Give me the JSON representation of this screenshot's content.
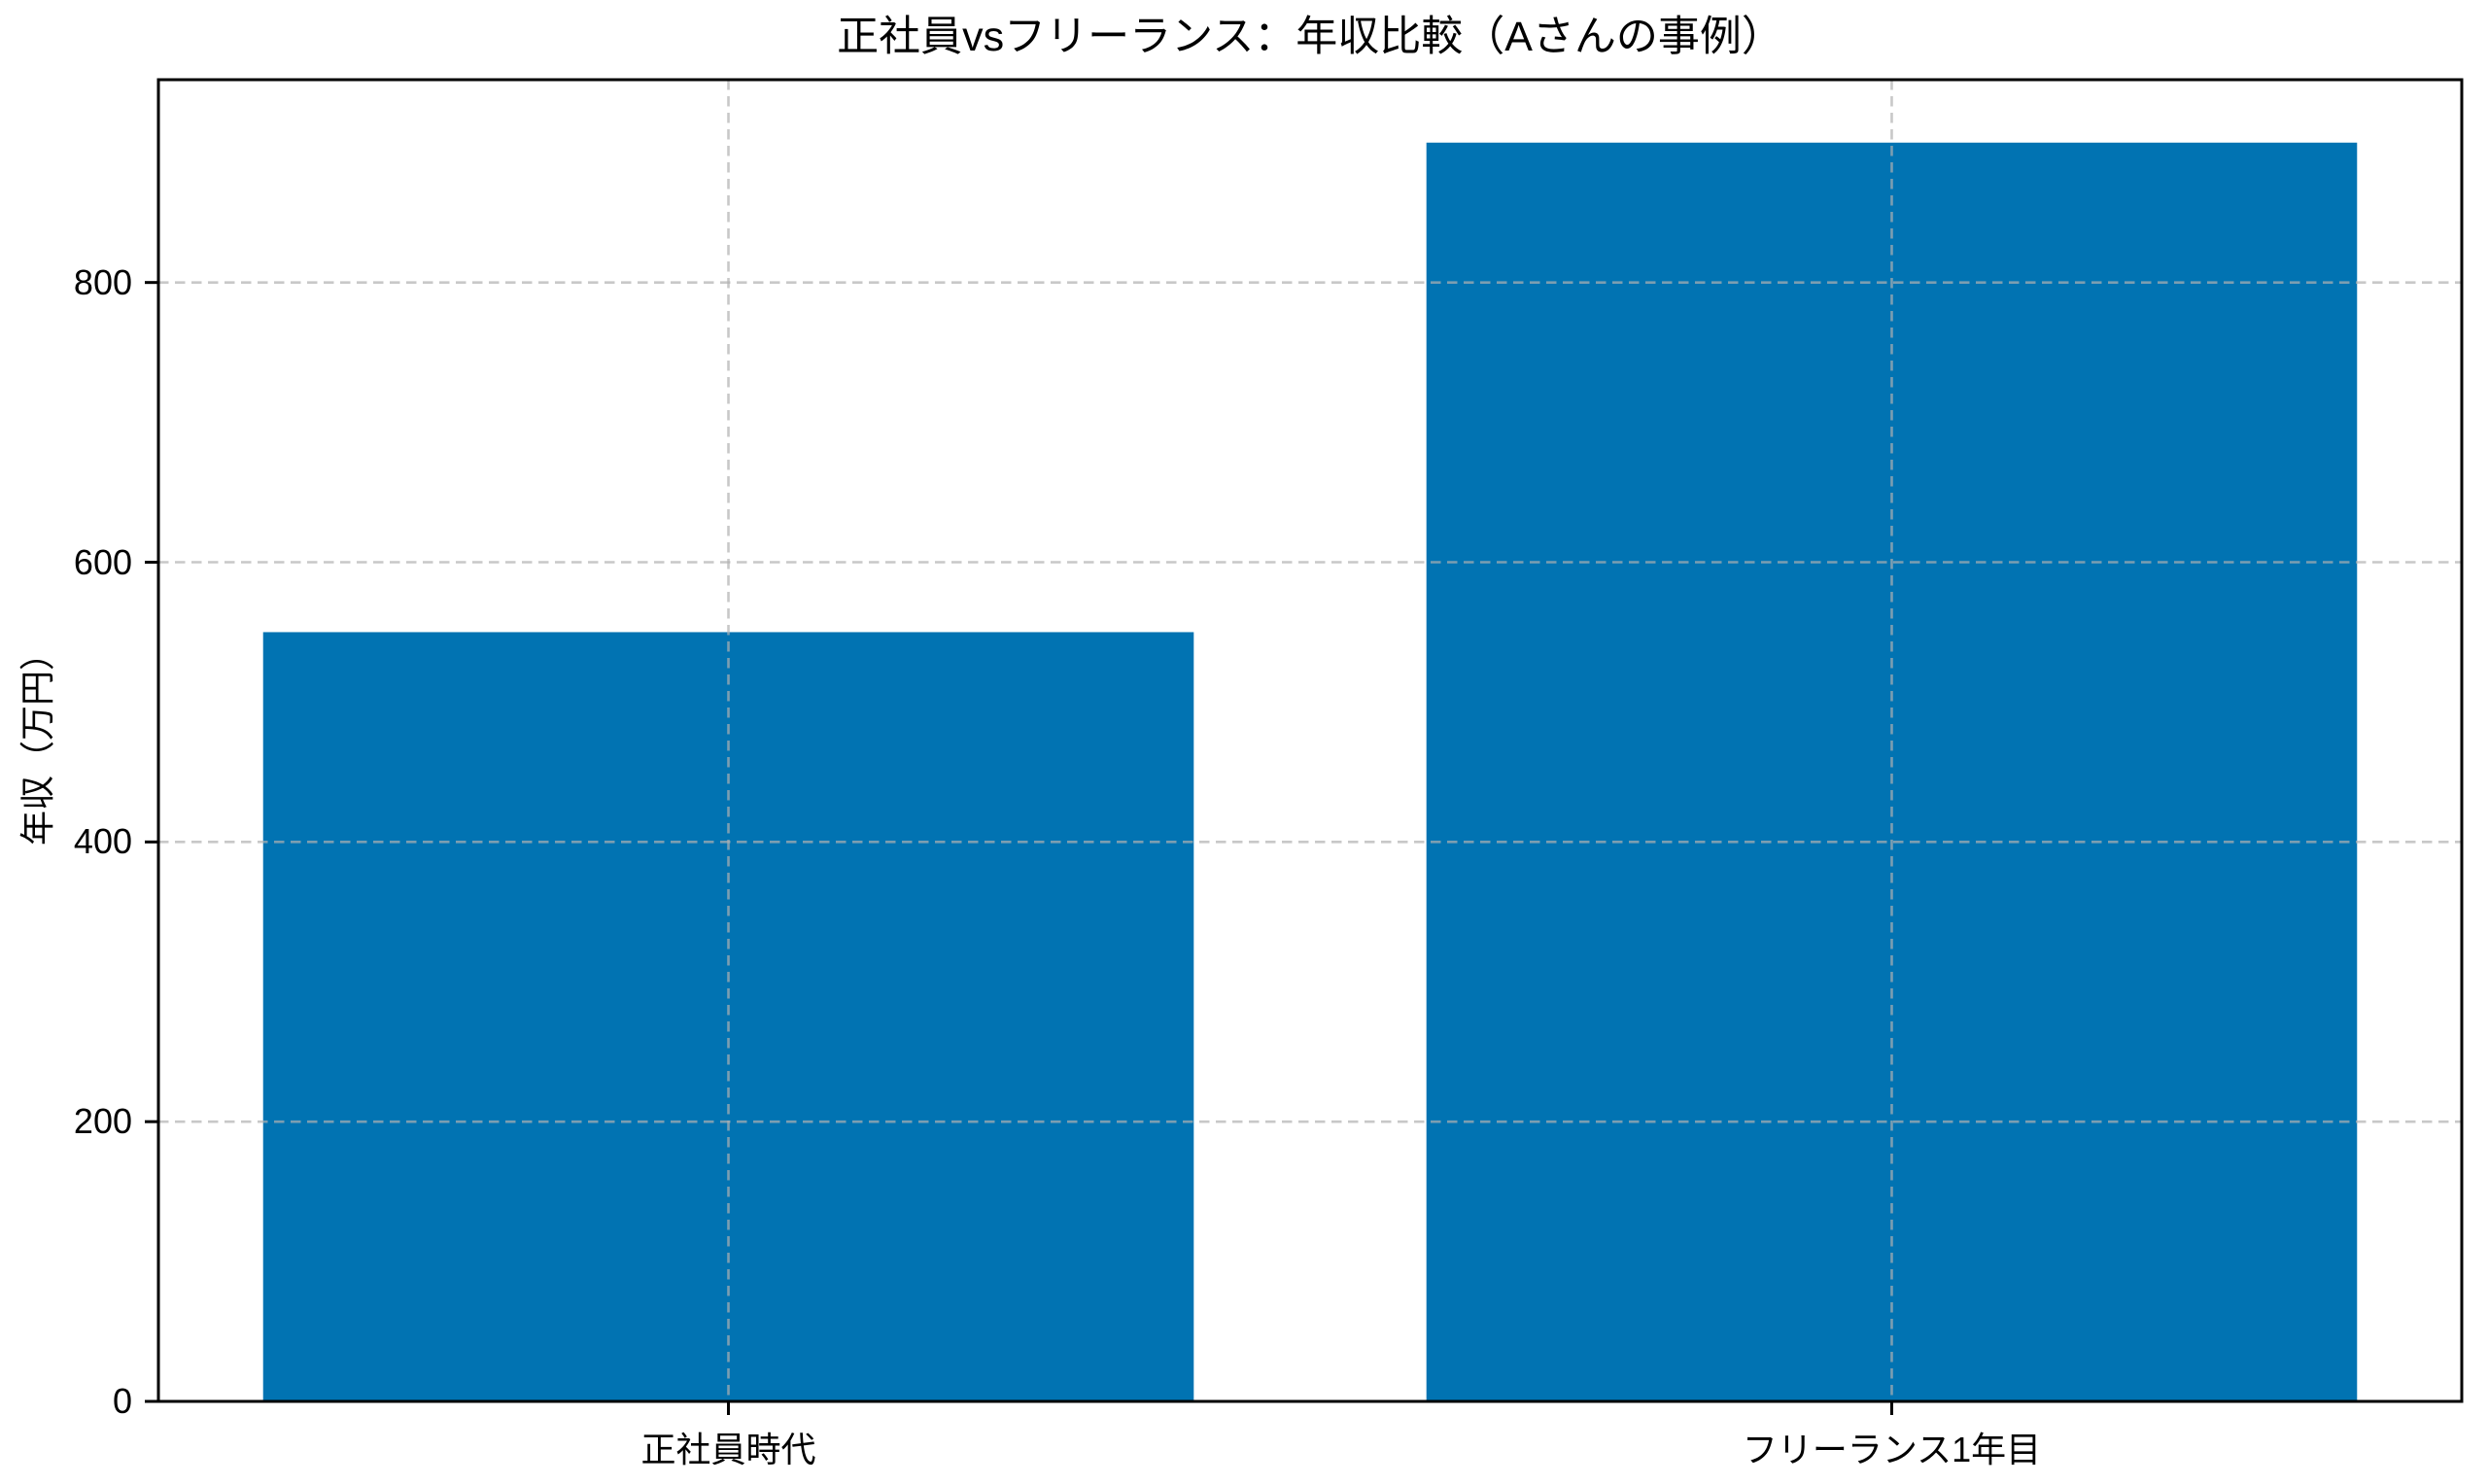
{
  "chart_data": {
    "type": "bar",
    "title": "正社員vsフリーランス：年収比較（Aさんの事例）",
    "ylabel": "年収（万円）",
    "xlabel": "",
    "categories": [
      "正社員時代",
      "フリーランス1年目"
    ],
    "values": [
      550,
      900
    ],
    "yticks": [
      0,
      200,
      400,
      600,
      800
    ],
    "ytick_labels": [
      "0",
      "200",
      "400",
      "600",
      "800"
    ],
    "ylim": [
      0,
      945
    ],
    "bar_color": "#0173b2",
    "grid": {
      "linestyle": "dashed",
      "color": "#b0b0b0",
      "alpha": 0.7,
      "axes": "both"
    },
    "legend": null
  }
}
